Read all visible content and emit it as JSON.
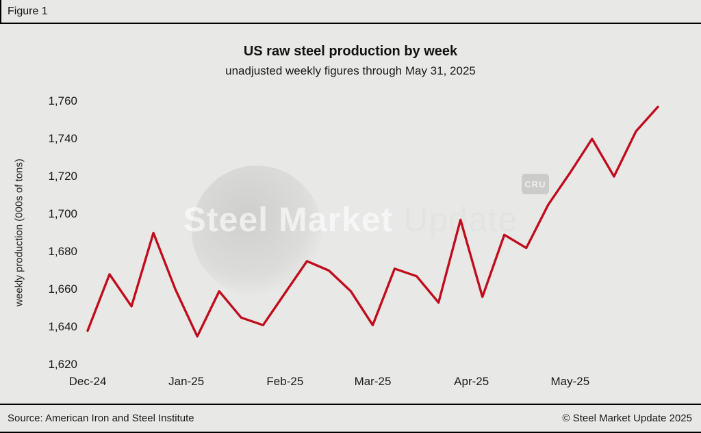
{
  "figure_label": "Figure 1",
  "header": {
    "title": "US raw steel production by week",
    "subtitle": "unadjusted weekly figures through May 31, 2025"
  },
  "footer": {
    "source": "Source: American Iron and Steel Institute",
    "copyright": "© Steel Market Update 2025"
  },
  "watermark": {
    "primary": "Steel Market",
    "secondary": " Update",
    "cru_badge": "CRU"
  },
  "chart_data": {
    "type": "line",
    "title": "US raw steel production by week",
    "subtitle": "unadjusted weekly figures through May 31, 2025",
    "xlabel": "",
    "ylabel": "weekly production (000s of tons)",
    "ylim": [
      1620,
      1760
    ],
    "ytick_step": 20,
    "grid": false,
    "legend": false,
    "line_color": "#c00d1d",
    "x_ticks": [
      {
        "label": "Dec-24",
        "pos": 0
      },
      {
        "label": "Jan-25",
        "pos": 4.5
      },
      {
        "label": "Feb-25",
        "pos": 9
      },
      {
        "label": "Mar-25",
        "pos": 13
      },
      {
        "label": "Apr-25",
        "pos": 17.5
      },
      {
        "label": "May-25",
        "pos": 22
      }
    ],
    "values": [
      1638,
      1668,
      1651,
      1690,
      1660,
      1635,
      1659,
      1645,
      1641,
      1658,
      1675,
      1670,
      1659,
      1641,
      1671,
      1667,
      1653,
      1697,
      1656,
      1689,
      1682,
      1705,
      1722,
      1740,
      1720,
      1744,
      1757
    ]
  }
}
